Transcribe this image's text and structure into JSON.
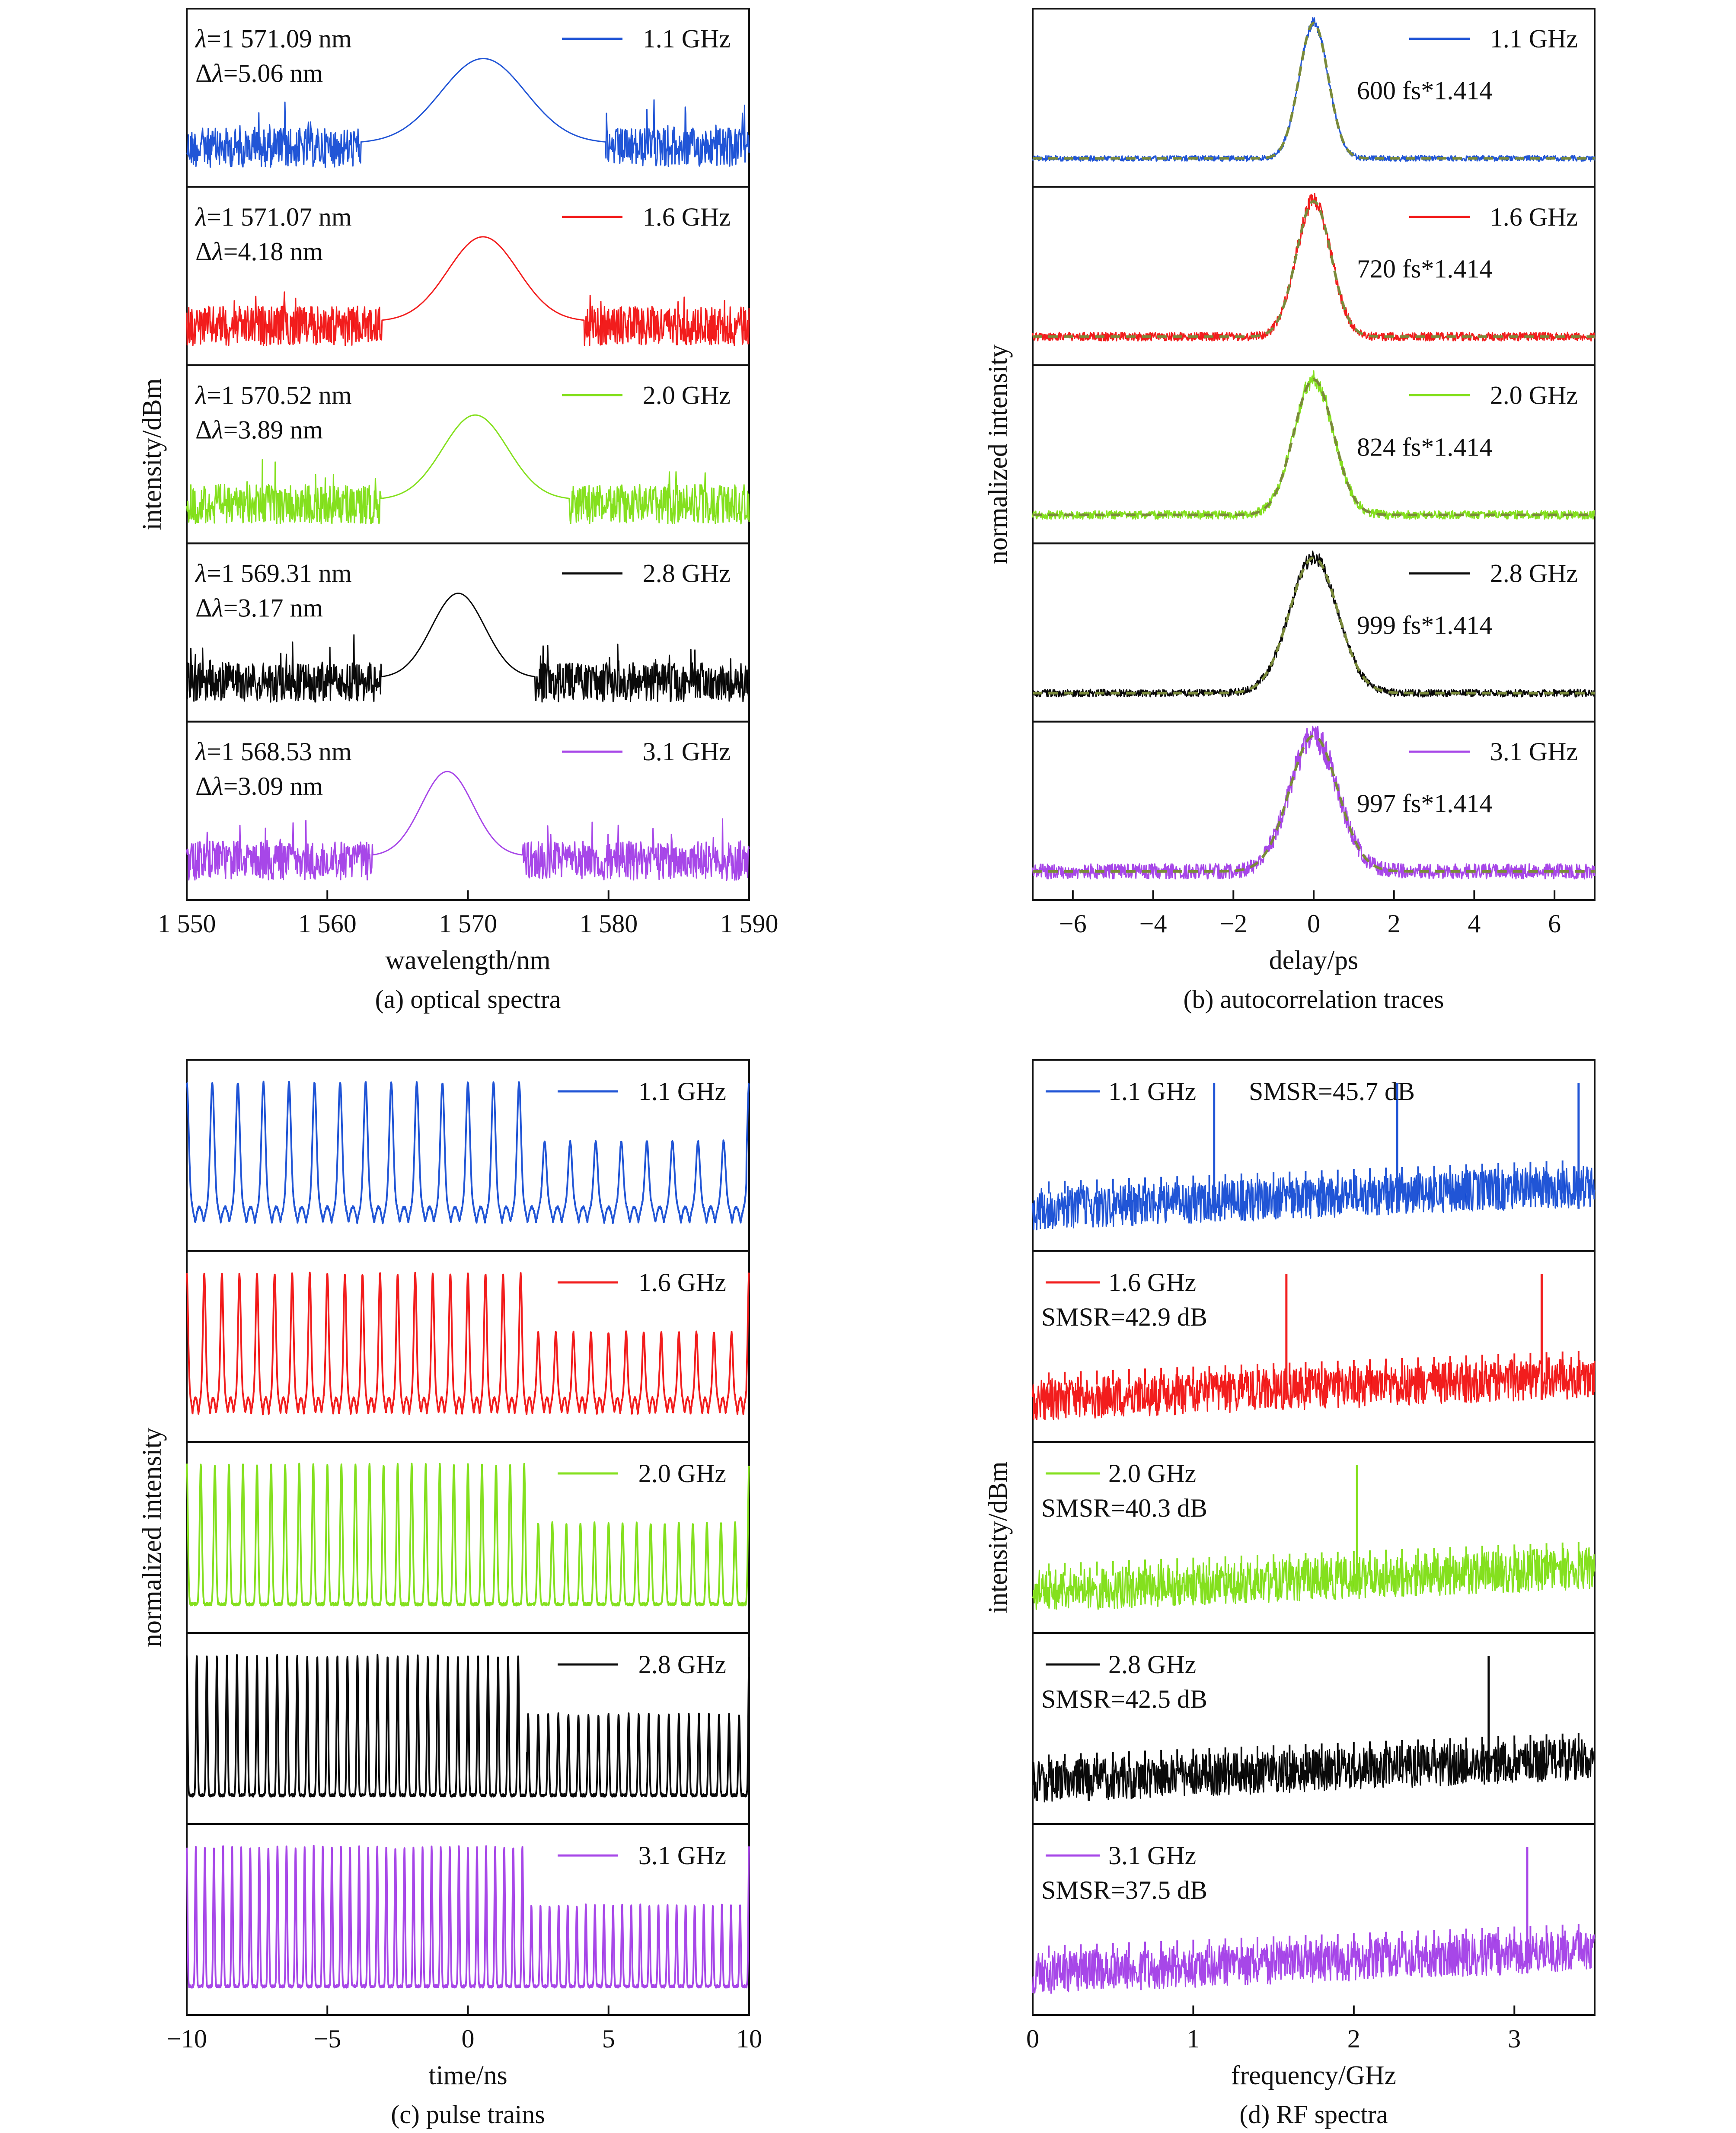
{
  "colors": {
    "1.1 GHz": "#2155d6",
    "1.6 GHz": "#f21d1d",
    "2.0 GHz": "#84e01e",
    "2.8 GHz": "#0a0a0a",
    "3.1 GHz": "#a747e8",
    "fit": "#7a8a3a"
  },
  "chart_data": [
    {
      "panel": "a",
      "type": "line",
      "caption": "(a) optical spectra",
      "xlabel": "wavelength/nm",
      "ylabel": "intensity/dBm",
      "xlim": [
        1550,
        1590
      ],
      "xticks": [
        1550,
        1560,
        1570,
        1580,
        1590
      ],
      "xtick_labels": [
        "1 550",
        "1 560",
        "1 570",
        "1 580",
        "1 590"
      ],
      "subplots": [
        {
          "legend": "1.1 GHz",
          "text": [
            "λ=1 571.09 nm",
            "Δλ=5.06 nm"
          ],
          "center_nm": 1571.09,
          "fwhm_nm": 5.06
        },
        {
          "legend": "1.6 GHz",
          "text": [
            "λ=1 571.07 nm",
            "Δλ=4.18 nm"
          ],
          "center_nm": 1571.07,
          "fwhm_nm": 4.18
        },
        {
          "legend": "2.0 GHz",
          "text": [
            "λ=1 570.52 nm",
            "Δλ=3.89 nm"
          ],
          "center_nm": 1570.52,
          "fwhm_nm": 3.89
        },
        {
          "legend": "2.8 GHz",
          "text": [
            "λ=1 569.31 nm",
            "Δλ=3.17 nm"
          ],
          "center_nm": 1569.31,
          "fwhm_nm": 3.17
        },
        {
          "legend": "3.1 GHz",
          "text": [
            "λ=1 568.53 nm",
            "Δλ=3.09 nm"
          ],
          "center_nm": 1568.53,
          "fwhm_nm": 3.09
        }
      ]
    },
    {
      "panel": "b",
      "type": "line",
      "caption": "(b) autocorrelation traces",
      "xlabel": "delay/ps",
      "ylabel": "normalized intensity",
      "xlim": [
        -7,
        7
      ],
      "xticks": [
        -6,
        -4,
        -2,
        0,
        2,
        4,
        6
      ],
      "xtick_labels": [
        "−6",
        "−4",
        "−2",
        "0",
        "2",
        "4",
        "6"
      ],
      "subplots": [
        {
          "legend": "1.1 GHz",
          "text": "600 fs*1.414",
          "width_ps": 0.6
        },
        {
          "legend": "1.6 GHz",
          "text": "720 fs*1.414",
          "width_ps": 0.72
        },
        {
          "legend": "2.0 GHz",
          "text": "824 fs*1.414",
          "width_ps": 0.824
        },
        {
          "legend": "2.8 GHz",
          "text": "999 fs*1.414",
          "width_ps": 0.999
        },
        {
          "legend": "3.1 GHz",
          "text": "997 fs*1.414",
          "width_ps": 0.997
        }
      ]
    },
    {
      "panel": "c",
      "type": "line",
      "caption": "(c) pulse trains",
      "xlabel": "time/ns",
      "ylabel": "normalized intensity",
      "xlim": [
        -10,
        10
      ],
      "xticks": [
        -10,
        -5,
        0,
        5,
        10
      ],
      "xtick_labels": [
        "−10",
        "−5",
        "0",
        "5",
        "10"
      ],
      "subplots": [
        {
          "legend": "1.1 GHz",
          "rep_rate_ghz": 1.1
        },
        {
          "legend": "1.6 GHz",
          "rep_rate_ghz": 1.6
        },
        {
          "legend": "2.0 GHz",
          "rep_rate_ghz": 2.0
        },
        {
          "legend": "2.8 GHz",
          "rep_rate_ghz": 2.8
        },
        {
          "legend": "3.1 GHz",
          "rep_rate_ghz": 3.1
        }
      ]
    },
    {
      "panel": "d",
      "type": "line",
      "caption": "(d) RF spectra",
      "xlabel": "frequency/GHz",
      "ylabel": "intensity/dBm",
      "xlim": [
        0,
        3.5
      ],
      "xticks": [
        0,
        1,
        2,
        3
      ],
      "xtick_labels": [
        "0",
        "1",
        "2",
        "3"
      ],
      "subplots": [
        {
          "legend": "1.1 GHz",
          "text": "SMSR=45.7 dB",
          "peaks_ghz": [
            1.13,
            2.27,
            3.4
          ]
        },
        {
          "legend": "1.6 GHz",
          "text": "SMSR=42.9 dB",
          "peaks_ghz": [
            1.58,
            3.17
          ]
        },
        {
          "legend": "2.0 GHz",
          "text": "SMSR=40.3 dB",
          "peaks_ghz": [
            2.02
          ]
        },
        {
          "legend": "2.8 GHz",
          "text": "SMSR=42.5 dB",
          "peaks_ghz": [
            2.84
          ]
        },
        {
          "legend": "3.1 GHz",
          "text": "SMSR=37.5 dB",
          "peaks_ghz": [
            3.08
          ]
        }
      ]
    }
  ]
}
